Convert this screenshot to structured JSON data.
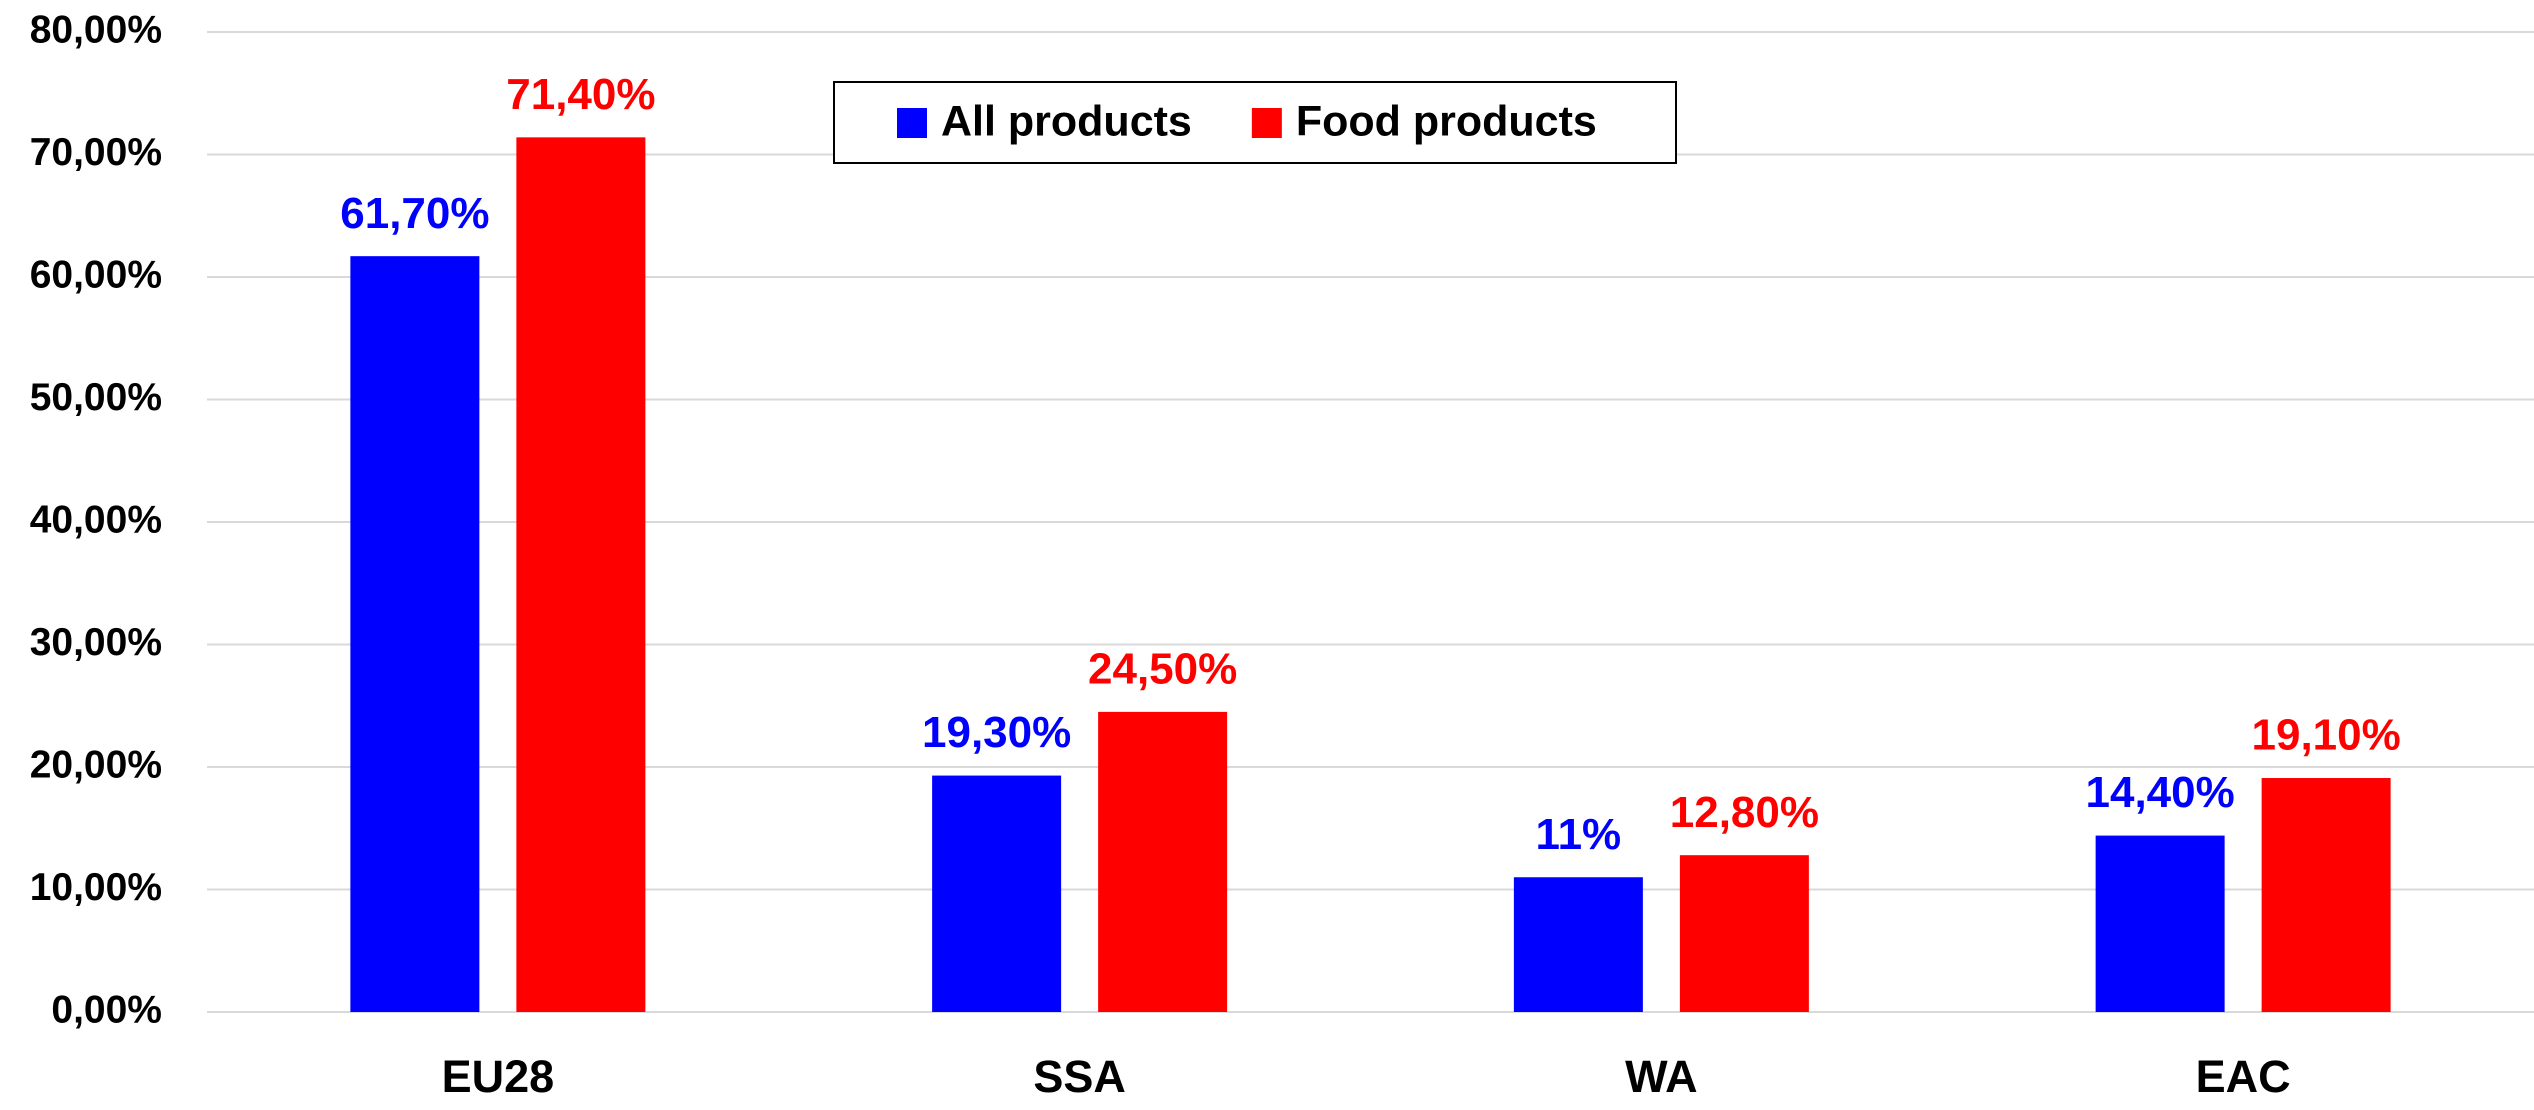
{
  "chart_data": {
    "type": "bar",
    "categories": [
      "EU28",
      "SSA",
      "WA",
      "EAC"
    ],
    "series": [
      {
        "name": "All products",
        "color": "#0000ff",
        "values": [
          61.7,
          19.3,
          11,
          14.4
        ],
        "value_labels": [
          "61,70%",
          "19,30%",
          "11%",
          "14,40%"
        ]
      },
      {
        "name": "Food products",
        "color": "#ff0000",
        "values": [
          71.4,
          24.5,
          12.8,
          19.1
        ],
        "value_labels": [
          "71,40%",
          "24,50%",
          "12,80%",
          "19,10%"
        ]
      }
    ],
    "ylim": [
      0,
      80
    ],
    "yticks": [
      {
        "value": 0,
        "label": "0,00%"
      },
      {
        "value": 10,
        "label": "10,00%"
      },
      {
        "value": 20,
        "label": "20,00%"
      },
      {
        "value": 30,
        "label": "30,00%"
      },
      {
        "value": 40,
        "label": "40,00%"
      },
      {
        "value": 50,
        "label": "50,00%"
      },
      {
        "value": 60,
        "label": "60,00%"
      },
      {
        "value": 70,
        "label": "70,00%"
      },
      {
        "value": 80,
        "label": "80,00%"
      }
    ],
    "grid": true
  }
}
